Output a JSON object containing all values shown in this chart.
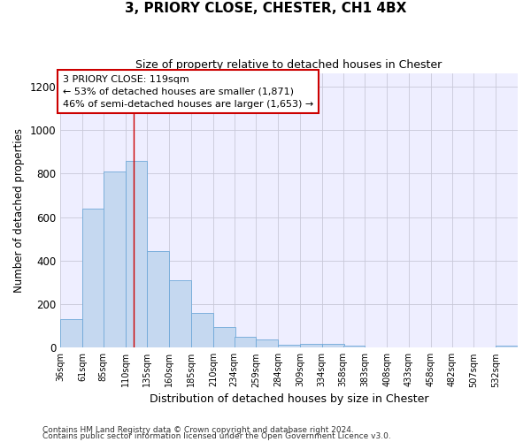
{
  "title": "3, PRIORY CLOSE, CHESTER, CH1 4BX",
  "subtitle": "Size of property relative to detached houses in Chester",
  "xlabel": "Distribution of detached houses by size in Chester",
  "ylabel": "Number of detached properties",
  "footer_line1": "Contains HM Land Registry data © Crown copyright and database right 2024.",
  "footer_line2": "Contains public sector information licensed under the Open Government Licence v3.0.",
  "bar_color": "#c5d8f0",
  "bar_edge_color": "#6fa8d8",
  "grid_color": "#c8c8d8",
  "background_color": "#eeeeff",
  "annotation_box_color": "#cc0000",
  "annotation_line_color": "#cc0000",
  "annotation_text_line1": "3 PRIORY CLOSE: 119sqm",
  "annotation_text_line2": "← 53% of detached houses are smaller (1,871)",
  "annotation_text_line3": "46% of semi-detached houses are larger (1,653) →",
  "categories": [
    "36sqm",
    "61sqm",
    "85sqm",
    "110sqm",
    "135sqm",
    "160sqm",
    "185sqm",
    "210sqm",
    "234sqm",
    "259sqm",
    "284sqm",
    "309sqm",
    "334sqm",
    "358sqm",
    "383sqm",
    "408sqm",
    "433sqm",
    "458sqm",
    "482sqm",
    "507sqm",
    "532sqm"
  ],
  "bar_values": [
    130,
    640,
    810,
    860,
    445,
    308,
    158,
    96,
    52,
    38,
    15,
    18,
    18,
    10,
    0,
    0,
    0,
    0,
    0,
    0,
    10
  ],
  "bin_edges": [
    36,
    61,
    85,
    110,
    135,
    160,
    185,
    210,
    234,
    259,
    284,
    309,
    334,
    358,
    383,
    408,
    433,
    458,
    482,
    507,
    532
  ],
  "bin_width": 25,
  "vline_x": 119,
  "ylim": [
    0,
    1260
  ],
  "yticks": [
    0,
    200,
    400,
    600,
    800,
    1000,
    1200
  ]
}
